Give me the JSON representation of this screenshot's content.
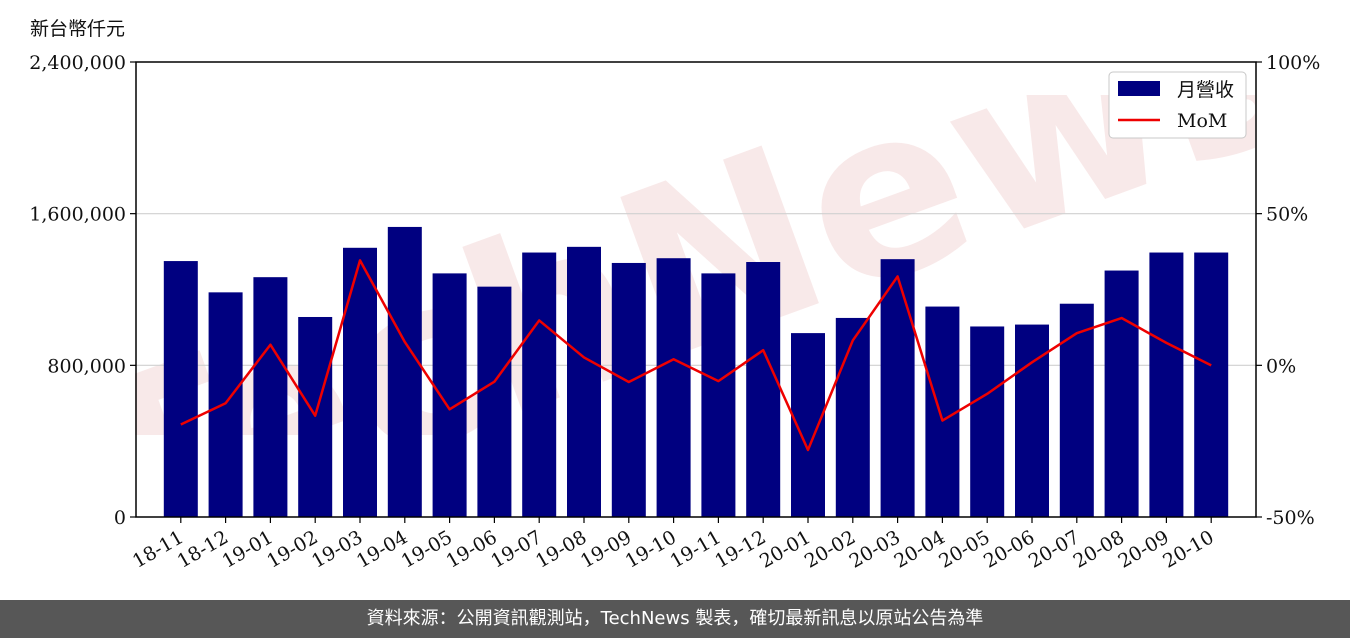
{
  "unit_label": "新台幣仟元",
  "footer_text": "資料來源：公開資訊觀測站，TechNews 製表，確切最新訊息以原站公告為準",
  "watermark_text": "TechNews",
  "colors": {
    "bar": "#000080",
    "line": "#ee0000",
    "grid": "#d0d0d0",
    "footer_bg": "#575757",
    "watermark": "#f2c9c9"
  },
  "chart_data": {
    "type": "bar",
    "categories": [
      "18-11",
      "18-12",
      "19-01",
      "19-02",
      "19-03",
      "19-04",
      "19-05",
      "19-06",
      "19-07",
      "19-08",
      "19-09",
      "19-10",
      "19-11",
      "19-12",
      "20-01",
      "20-02",
      "20-03",
      "20-04",
      "20-05",
      "20-06",
      "20-07",
      "20-08",
      "20-09",
      "20-10"
    ],
    "series": [
      {
        "name": "月營收",
        "type": "bar",
        "axis": "left",
        "values": [
          1350000,
          1185000,
          1265000,
          1055000,
          1420000,
          1530000,
          1285000,
          1215000,
          1395000,
          1425000,
          1340000,
          1365000,
          1285000,
          1345000,
          970000,
          1050000,
          1360000,
          1110000,
          1005000,
          1015000,
          1125000,
          1300000,
          1395000,
          1395000
        ]
      },
      {
        "name": "MoM",
        "type": "line",
        "axis": "right",
        "values": [
          -19.5,
          -12.5,
          6.8,
          -16.6,
          34.6,
          7.7,
          -14.5,
          -5.4,
          14.8,
          2.6,
          -5.5,
          2.0,
          -5.2,
          5.0,
          -27.9,
          8.2,
          29.3,
          -18.2,
          -9.4,
          1.0,
          10.6,
          15.6,
          7.4,
          0.0
        ]
      }
    ],
    "y_left": {
      "min": 0,
      "max": 2400000,
      "ticks": [
        0,
        800000,
        1600000,
        2400000
      ],
      "tick_labels": [
        "0",
        "800,000",
        "1,600,000",
        "2,400,000"
      ]
    },
    "y_right": {
      "min": -50,
      "max": 100,
      "ticks": [
        -50,
        0,
        50,
        100
      ],
      "tick_labels": [
        "-50%",
        "0%",
        "50%",
        "100%"
      ]
    },
    "grid": true,
    "legend_position": "top-right",
    "title": "",
    "xlabel": "",
    "ylabel": ""
  }
}
